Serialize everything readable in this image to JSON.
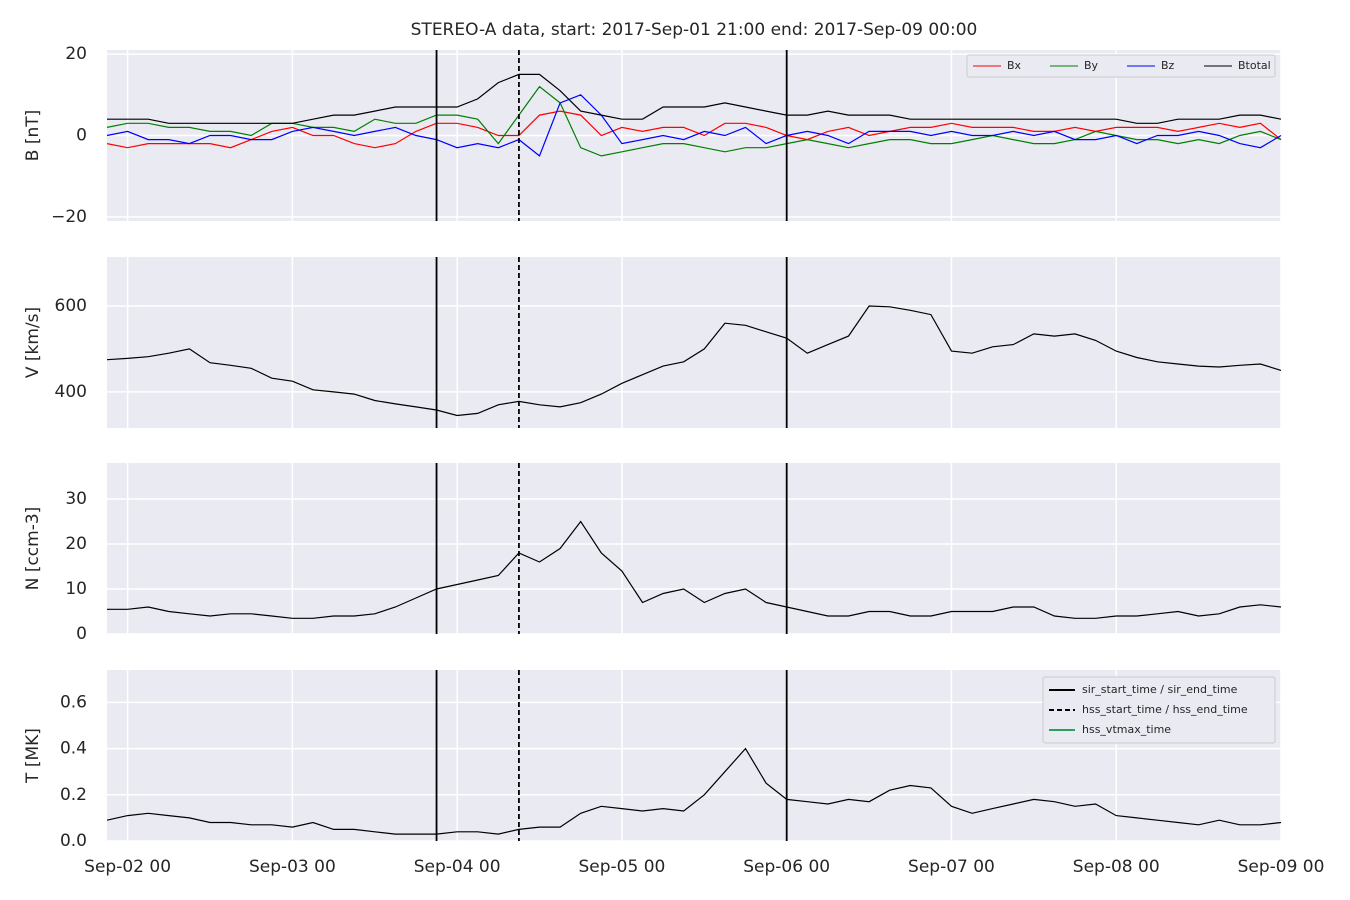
{
  "chart_data": {
    "type": "line",
    "title": "STEREO-A data, start: 2017-Sep-01 21:00  end: 2017-Sep-09 00:00",
    "x": [
      "Sep-01 21",
      "Sep-02 00",
      "Sep-02 03",
      "Sep-02 06",
      "Sep-02 09",
      "Sep-02 12",
      "Sep-02 15",
      "Sep-02 18",
      "Sep-02 21",
      "Sep-03 00",
      "Sep-03 03",
      "Sep-03 06",
      "Sep-03 09",
      "Sep-03 12",
      "Sep-03 15",
      "Sep-03 18",
      "Sep-03 21",
      "Sep-04 00",
      "Sep-04 03",
      "Sep-04 06",
      "Sep-04 09",
      "Sep-04 12",
      "Sep-04 15",
      "Sep-04 18",
      "Sep-04 21",
      "Sep-05 00",
      "Sep-05 03",
      "Sep-05 06",
      "Sep-05 09",
      "Sep-05 12",
      "Sep-05 15",
      "Sep-05 18",
      "Sep-05 21",
      "Sep-06 00",
      "Sep-06 03",
      "Sep-06 06",
      "Sep-06 09",
      "Sep-06 12",
      "Sep-06 15",
      "Sep-06 18",
      "Sep-06 21",
      "Sep-07 00",
      "Sep-07 03",
      "Sep-07 06",
      "Sep-07 09",
      "Sep-07 12",
      "Sep-07 15",
      "Sep-07 18",
      "Sep-07 21",
      "Sep-08 00",
      "Sep-08 03",
      "Sep-08 06",
      "Sep-08 09",
      "Sep-08 12",
      "Sep-08 15",
      "Sep-08 18",
      "Sep-08 21",
      "Sep-09 00"
    ],
    "xlim": [
      "Sep-01 21",
      "Sep-09 00"
    ],
    "xticks": [
      "Sep-02 00",
      "Sep-03 00",
      "Sep-04 00",
      "Sep-05 00",
      "Sep-06 00",
      "Sep-07 00",
      "Sep-08 00",
      "Sep-09 00"
    ],
    "grid": true,
    "events": [
      {
        "name": "sir_start_time / sir_end_time",
        "color": "#000000",
        "style": "solid",
        "times": [
          "Sep-03 21",
          "Sep-06 00"
        ]
      },
      {
        "name": "hss_start_time / hss_end_time",
        "color": "#000000",
        "style": "dashed",
        "times": [
          "Sep-04 09"
        ]
      },
      {
        "name": "hss_vtmax_time",
        "color": "#2ca05a",
        "style": "solid",
        "times": []
      }
    ],
    "events_legend": "upper right",
    "panels": [
      {
        "ylabel": "B [nT]",
        "ylim": [
          -21,
          21
        ],
        "yticks": [
          {
            "value": -20,
            "label": "−20"
          },
          0,
          20
        ],
        "legend": "upper right",
        "series": [
          {
            "name": "Bx",
            "color": "#ff0000",
            "values": [
              -2,
              -3,
              -2,
              -2,
              -2,
              -2,
              -3,
              -1,
              1,
              2,
              0,
              0,
              -2,
              -3,
              -2,
              1,
              3,
              3,
              2,
              0,
              0,
              5,
              6,
              5,
              0,
              2,
              1,
              2,
              2,
              0,
              3,
              3,
              2,
              0,
              -1,
              1,
              2,
              0,
              1,
              2,
              2,
              3,
              2,
              2,
              2,
              1,
              1,
              2,
              1,
              2,
              2,
              2,
              1,
              2,
              3,
              2,
              3,
              -1
            ]
          },
          {
            "name": "By",
            "color": "#008000",
            "values": [
              2,
              3,
              3,
              2,
              2,
              1,
              1,
              0,
              3,
              3,
              2,
              2,
              1,
              4,
              3,
              3,
              5,
              5,
              4,
              -2,
              5,
              12,
              8,
              -3,
              -5,
              -4,
              -3,
              -2,
              -2,
              -3,
              -4,
              -3,
              -3,
              -2,
              -1,
              -2,
              -3,
              -2,
              -1,
              -1,
              -2,
              -2,
              -1,
              0,
              -1,
              -2,
              -2,
              -1,
              1,
              0,
              -1,
              -1,
              -2,
              -1,
              -2,
              0,
              1,
              -1
            ]
          },
          {
            "name": "Bz",
            "color": "#0000ff",
            "values": [
              0,
              1,
              -1,
              -1,
              -2,
              0,
              0,
              -1,
              -1,
              1,
              2,
              1,
              0,
              1,
              2,
              0,
              -1,
              -3,
              -2,
              -3,
              -1,
              -5,
              8,
              10,
              5,
              -2,
              -1,
              0,
              -1,
              1,
              0,
              2,
              -2,
              0,
              1,
              0,
              -2,
              1,
              1,
              1,
              0,
              1,
              0,
              0,
              1,
              0,
              1,
              -1,
              -1,
              0,
              -2,
              0,
              0,
              1,
              0,
              -2,
              -3,
              0
            ]
          },
          {
            "name": "Btotal",
            "color": "#000000",
            "values": [
              4,
              4,
              4,
              3,
              3,
              3,
              3,
              3,
              3,
              3,
              4,
              5,
              5,
              6,
              7,
              7,
              7,
              7,
              9,
              13,
              15,
              15,
              11,
              6,
              5,
              4,
              4,
              7,
              7,
              7,
              8,
              7,
              6,
              5,
              5,
              6,
              5,
              5,
              5,
              4,
              4,
              4,
              4,
              4,
              4,
              4,
              4,
              4,
              4,
              4,
              3,
              3,
              4,
              4,
              4,
              5,
              5,
              4
            ]
          }
        ]
      },
      {
        "ylabel": "V [km/s]",
        "ylim": [
          316,
          714
        ],
        "yticks": [
          400,
          600
        ],
        "series": [
          {
            "color": "#000000",
            "values": [
              475,
              478,
              482,
              490,
              500,
              468,
              462,
              455,
              432,
              425,
              405,
              400,
              395,
              380,
              372,
              365,
              358,
              345,
              350,
              370,
              378,
              370,
              365,
              375,
              395,
              420,
              440,
              460,
              470,
              500,
              560,
              555,
              540,
              525,
              490,
              510,
              530,
              600,
              598,
              590,
              580,
              495,
              490,
              505,
              510,
              535,
              530,
              535,
              520,
              495,
              480,
              470,
              465,
              460,
              458,
              462,
              465,
              450
            ]
          }
        ]
      },
      {
        "ylabel": "N [ccm-3]",
        "ylim": [
          0,
          38
        ],
        "yticks": [
          0,
          10,
          20,
          30
        ],
        "series": [
          {
            "color": "#000000",
            "values": [
              5.5,
              5.5,
              6,
              5,
              4.5,
              4,
              4.5,
              4.5,
              4,
              3.5,
              3.5,
              4,
              4,
              4.5,
              6,
              8,
              10,
              11,
              12,
              13,
              18,
              16,
              19,
              25,
              18,
              14,
              7,
              9,
              10,
              7,
              9,
              10,
              7,
              6,
              5,
              4,
              4,
              5,
              5,
              4,
              4,
              5,
              5,
              5,
              6,
              6,
              4,
              3.5,
              3.5,
              4,
              4,
              4.5,
              5,
              4,
              4.5,
              6,
              6.5,
              6
            ]
          }
        ]
      },
      {
        "ylabel": "T [MK]",
        "ylim": [
          0,
          0.74
        ],
        "yticks": [
          {
            "value": 0,
            "label": "0.0"
          },
          0.2,
          0.4,
          0.6
        ],
        "series": [
          {
            "color": "#000000",
            "values": [
              0.09,
              0.11,
              0.12,
              0.11,
              0.1,
              0.08,
              0.08,
              0.07,
              0.07,
              0.06,
              0.08,
              0.05,
              0.05,
              0.04,
              0.03,
              0.03,
              0.03,
              0.04,
              0.04,
              0.03,
              0.05,
              0.06,
              0.06,
              0.12,
              0.15,
              0.14,
              0.13,
              0.14,
              0.13,
              0.2,
              0.3,
              0.4,
              0.25,
              0.18,
              0.17,
              0.16,
              0.18,
              0.17,
              0.22,
              0.24,
              0.23,
              0.15,
              0.12,
              0.14,
              0.16,
              0.18,
              0.17,
              0.15,
              0.16,
              0.11,
              0.1,
              0.09,
              0.08,
              0.07,
              0.09,
              0.07,
              0.07,
              0.08
            ]
          }
        ]
      }
    ]
  }
}
